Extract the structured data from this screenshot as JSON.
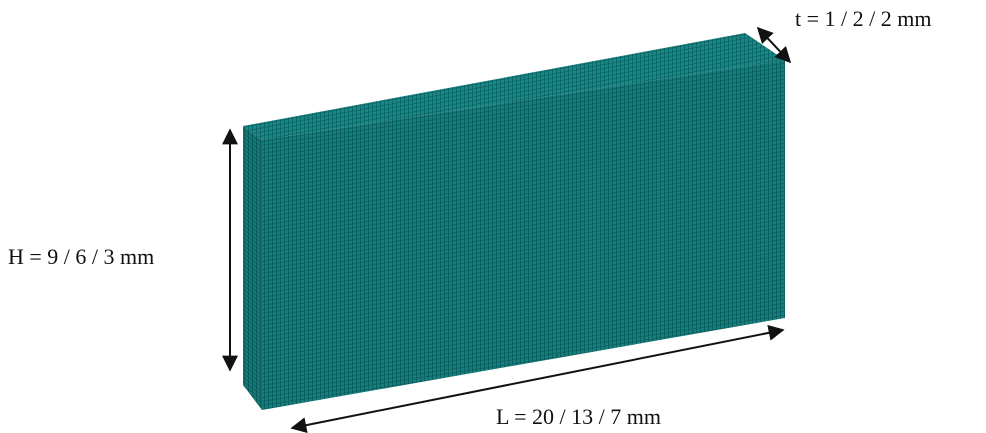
{
  "labels": {
    "thickness": "t = 1 / 2 / 2 mm",
    "height": "H = 9 / 6 / 3 mm",
    "length": "L = 20 / 13 / 7 mm"
  }
}
